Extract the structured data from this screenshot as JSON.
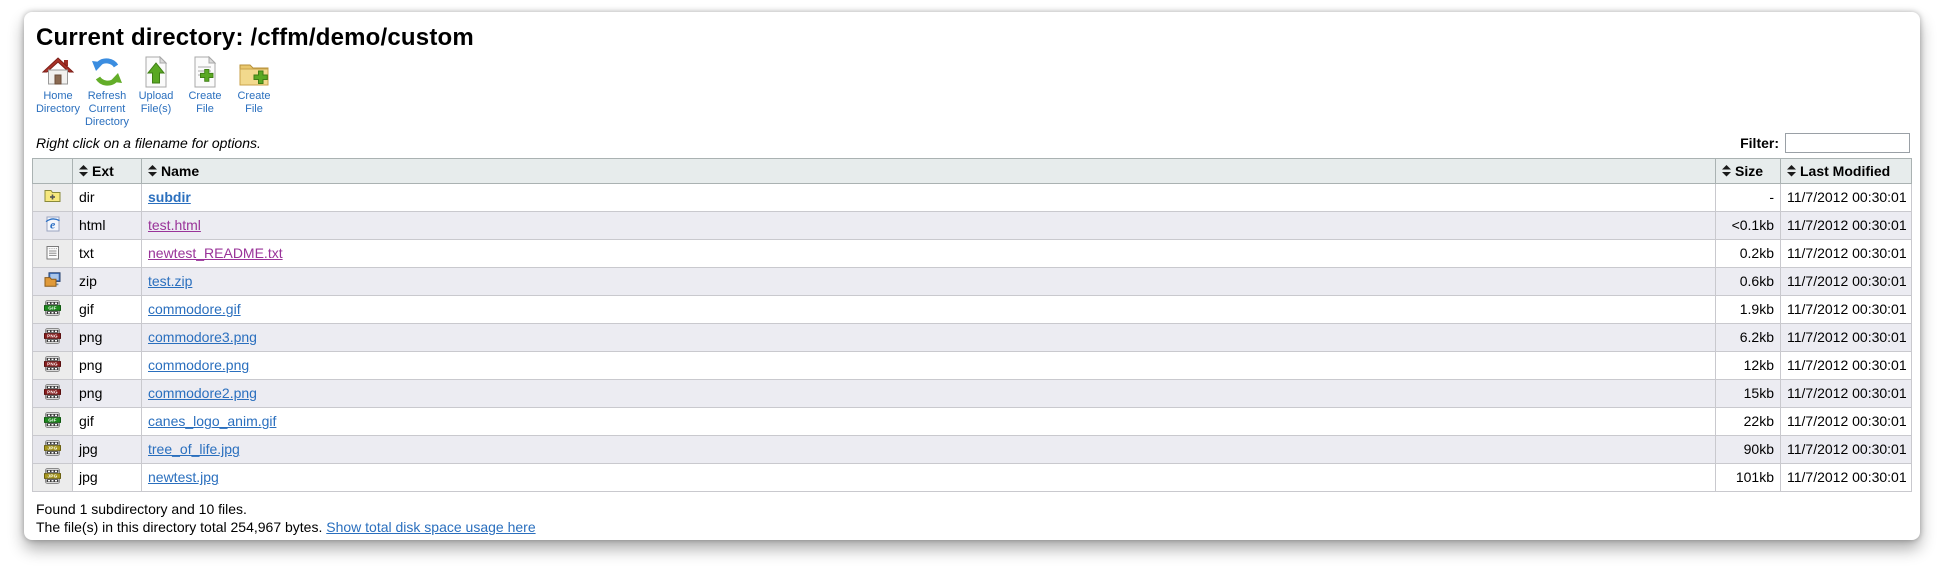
{
  "window": {
    "title": "Current directory: /cffm/demo/custom"
  },
  "toolbar": {
    "items": [
      {
        "name": "home-directory",
        "icon": "home-icon",
        "label": "Home Directory"
      },
      {
        "name": "refresh-current-directory",
        "icon": "refresh-icon",
        "label": "Refresh Current Directory"
      },
      {
        "name": "upload-files",
        "icon": "upload-icon",
        "label": "Upload File(s)"
      },
      {
        "name": "create-file",
        "icon": "create-file-icon",
        "label": "Create File"
      },
      {
        "name": "create-file-folder",
        "icon": "create-folder-icon",
        "label": "Create File"
      }
    ]
  },
  "hint": "Right click on a filename for options.",
  "filter": {
    "label": "Filter:",
    "value": "",
    "placeholder": ""
  },
  "table": {
    "columns": [
      {
        "label": "",
        "sortable": false,
        "class": "col-icon"
      },
      {
        "label": "Ext",
        "sortable": true,
        "class": "col-ext"
      },
      {
        "label": "Name",
        "sortable": true,
        "class": "col-name"
      },
      {
        "label": "Size",
        "sortable": true,
        "class": "col-size"
      },
      {
        "label": "Last Modified",
        "sortable": true,
        "class": "col-date"
      }
    ],
    "rows": [
      {
        "icon": "folder-plus-icon",
        "ext": "dir",
        "name": "subdir",
        "size": "-",
        "modified": "11/7/2012 00:30:01",
        "link_style": "dir"
      },
      {
        "icon": "ie-icon",
        "ext": "html",
        "name": "test.html",
        "size": "<0.1kb",
        "modified": "11/7/2012 00:30:01",
        "link_style": "visited"
      },
      {
        "icon": "notepad-icon",
        "ext": "txt",
        "name": "newtest_README.txt",
        "size": "0.2kb",
        "modified": "11/7/2012 00:30:01",
        "link_style": "visited"
      },
      {
        "icon": "zip-icon",
        "ext": "zip",
        "name": "test.zip",
        "size": "0.6kb",
        "modified": "11/7/2012 00:30:01",
        "link_style": "normal"
      },
      {
        "icon": "gif-chip-icon",
        "ext": "gif",
        "name": "commodore.gif",
        "size": "1.9kb",
        "modified": "11/7/2012 00:30:01",
        "link_style": "normal"
      },
      {
        "icon": "png-chip-icon",
        "ext": "png",
        "name": "commodore3.png",
        "size": "6.2kb",
        "modified": "11/7/2012 00:30:01",
        "link_style": "normal"
      },
      {
        "icon": "png-chip-icon",
        "ext": "png",
        "name": "commodore.png",
        "size": "12kb",
        "modified": "11/7/2012 00:30:01",
        "link_style": "normal"
      },
      {
        "icon": "png-chip-icon",
        "ext": "png",
        "name": "commodore2.png",
        "size": "15kb",
        "modified": "11/7/2012 00:30:01",
        "link_style": "normal"
      },
      {
        "icon": "gif-chip-icon",
        "ext": "gif",
        "name": "canes_logo_anim.gif",
        "size": "22kb",
        "modified": "11/7/2012 00:30:01",
        "link_style": "normal"
      },
      {
        "icon": "jpg-chip-icon",
        "ext": "jpg",
        "name": "tree_of_life.jpg",
        "size": "90kb",
        "modified": "11/7/2012 00:30:01",
        "link_style": "normal"
      },
      {
        "icon": "jpg-chip-icon",
        "ext": "jpg",
        "name": "newtest.jpg",
        "size": "101kb",
        "modified": "11/7/2012 00:30:01",
        "link_style": "normal"
      }
    ]
  },
  "footer": {
    "line1": "Found 1 subdirectory and 10 files.",
    "line2_prefix": "The file(s) in this directory total 254,967 bytes. ",
    "line2_link": "Show total disk space usage here"
  },
  "colors": {
    "link": "#2a6fbe",
    "visited_link": "#993399",
    "chips": {
      "gif": "#1e8a1e",
      "png": "#8a1f1f",
      "jpg": "#a8981e"
    },
    "chip_strokes": {
      "gif": "#0f5a0f",
      "png": "#5a0f0f",
      "jpg": "#6b6010"
    }
  }
}
